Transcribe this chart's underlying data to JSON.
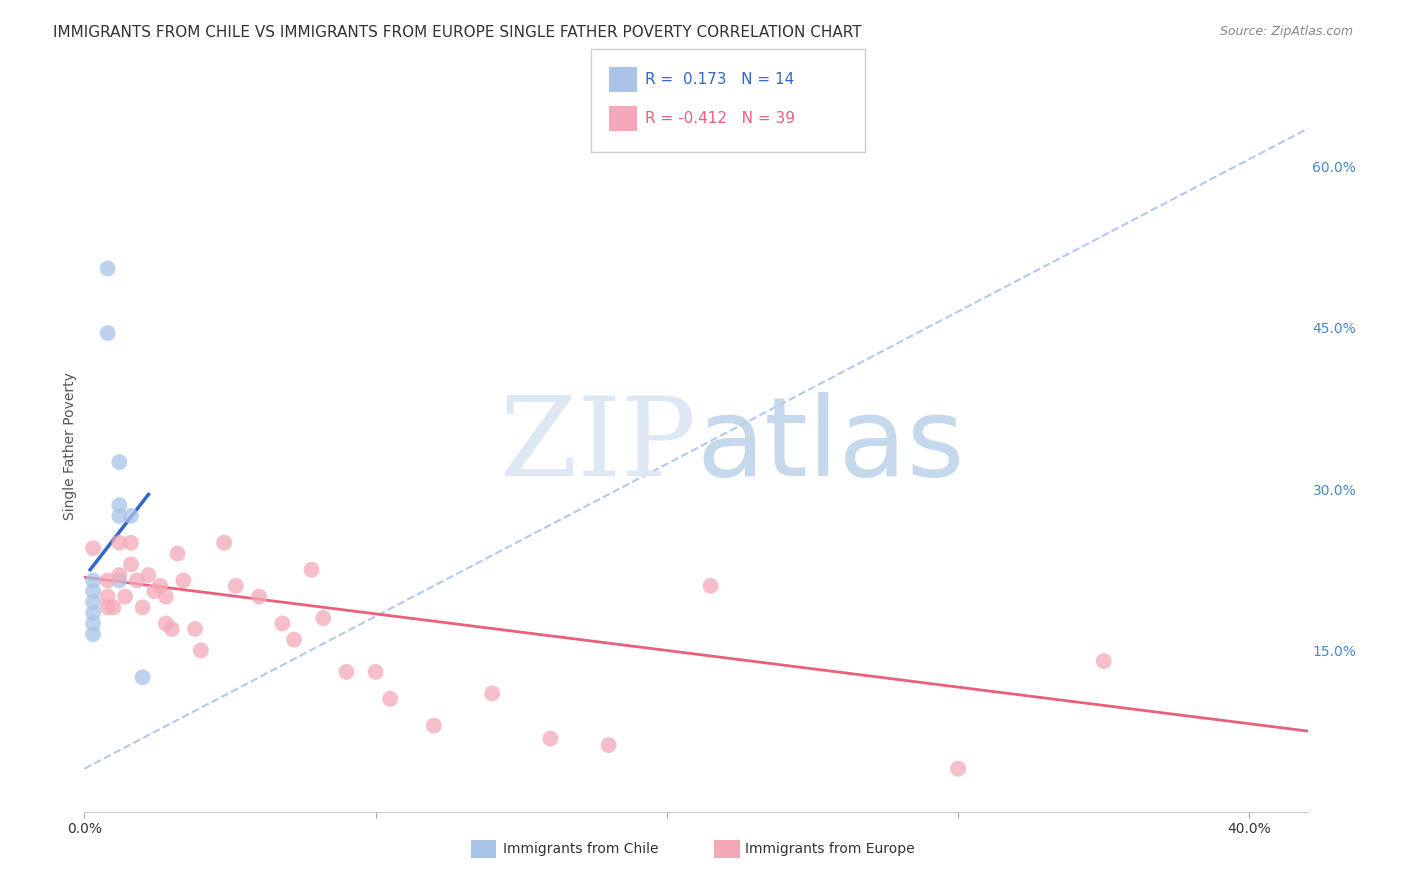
{
  "title": "IMMIGRANTS FROM CHILE VS IMMIGRANTS FROM EUROPE SINGLE FATHER POVERTY CORRELATION CHART",
  "source": "Source: ZipAtlas.com",
  "ylabel": "Single Father Poverty",
  "yticks": [
    0.15,
    0.3,
    0.45,
    0.6
  ],
  "ytick_labels": [
    "15.0%",
    "30.0%",
    "45.0%",
    "60.0%"
  ],
  "xlim": [
    0.0,
    0.42
  ],
  "ylim": [
    0.0,
    0.68
  ],
  "legend_r_chile": "0.173",
  "legend_n_chile": "14",
  "legend_r_europe": "-0.412",
  "legend_n_europe": "39",
  "chile_color": "#aac4e8",
  "europe_color": "#f4a8b8",
  "chile_line_color": "#3366cc",
  "europe_line_color": "#e8607a",
  "dashed_line_color": "#aac4e8",
  "chile_points_x": [
    0.008,
    0.008,
    0.012,
    0.012,
    0.012,
    0.012,
    0.016,
    0.003,
    0.003,
    0.003,
    0.003,
    0.003,
    0.003,
    0.02
  ],
  "chile_points_y": [
    0.505,
    0.445,
    0.325,
    0.285,
    0.275,
    0.215,
    0.275,
    0.215,
    0.205,
    0.195,
    0.185,
    0.175,
    0.165,
    0.125
  ],
  "europe_points_x": [
    0.003,
    0.008,
    0.008,
    0.008,
    0.01,
    0.012,
    0.012,
    0.014,
    0.016,
    0.016,
    0.018,
    0.02,
    0.022,
    0.024,
    0.026,
    0.028,
    0.028,
    0.03,
    0.032,
    0.034,
    0.038,
    0.04,
    0.048,
    0.052,
    0.06,
    0.068,
    0.072,
    0.078,
    0.082,
    0.09,
    0.1,
    0.105,
    0.12,
    0.14,
    0.16,
    0.18,
    0.215,
    0.3,
    0.35
  ],
  "europe_points_y": [
    0.245,
    0.215,
    0.2,
    0.19,
    0.19,
    0.25,
    0.22,
    0.2,
    0.25,
    0.23,
    0.215,
    0.19,
    0.22,
    0.205,
    0.21,
    0.2,
    0.175,
    0.17,
    0.24,
    0.215,
    0.17,
    0.15,
    0.25,
    0.21,
    0.2,
    0.175,
    0.16,
    0.225,
    0.18,
    0.13,
    0.13,
    0.105,
    0.08,
    0.11,
    0.068,
    0.062,
    0.21,
    0.04,
    0.14
  ],
  "chile_line_x": [
    0.002,
    0.022
  ],
  "chile_line_y": [
    0.225,
    0.295
  ],
  "europe_line_x": [
    0.0,
    0.42
  ],
  "europe_line_y": [
    0.218,
    0.075
  ],
  "dashed_line_x": [
    0.0,
    0.42
  ],
  "dashed_line_y": [
    0.04,
    0.635
  ],
  "background_color": "#ffffff",
  "grid_color": "#e0e0e0",
  "title_fontsize": 11,
  "axis_label_fontsize": 10,
  "tick_fontsize": 10,
  "legend_fontsize": 11,
  "marker_size": 130
}
